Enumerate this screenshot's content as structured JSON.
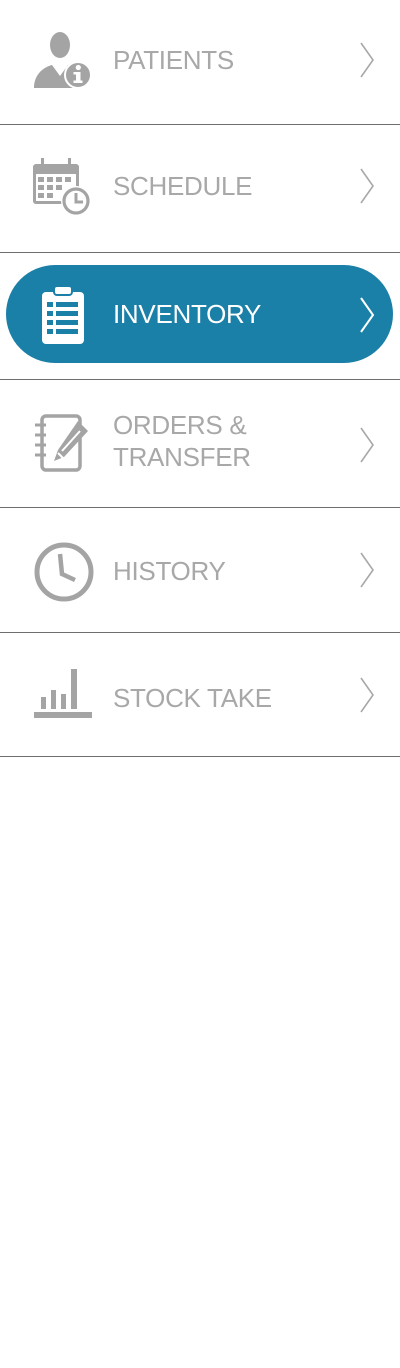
{
  "theme": {
    "accent": "#1b80a8",
    "icon_color": "#a4a4a4",
    "text_color": "#a8a8a8",
    "active_text_color": "#ffffff",
    "divider": "#6e6e6e"
  },
  "menu": {
    "items": [
      {
        "label": "PATIENTS",
        "icon": "patient-info-icon",
        "active": false
      },
      {
        "label": "SCHEDULE",
        "icon": "calendar-clock-icon",
        "active": false
      },
      {
        "label": "INVENTORY",
        "icon": "clipboard-list-icon",
        "active": true
      },
      {
        "label_line1": "ORDERS &",
        "label_line2": "TRANSFER",
        "icon": "notebook-pencil-icon",
        "active": false
      },
      {
        "label": "HISTORY",
        "icon": "clock-icon",
        "active": false
      },
      {
        "label": "STOCK TAKE",
        "icon": "bar-chart-icon",
        "active": false
      }
    ]
  }
}
